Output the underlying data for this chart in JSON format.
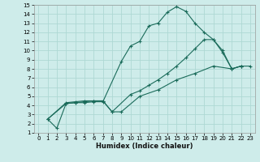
{
  "xlabel": "Humidex (Indice chaleur)",
  "bg_color": "#ceecea",
  "grid_color": "#aed8d4",
  "line_color": "#1a6b5a",
  "xlim": [
    -0.5,
    23.5
  ],
  "ylim": [
    1,
    15
  ],
  "xticks": [
    0,
    1,
    2,
    3,
    4,
    5,
    6,
    7,
    8,
    9,
    10,
    11,
    12,
    13,
    14,
    15,
    16,
    17,
    18,
    19,
    20,
    21,
    22,
    23
  ],
  "yticks": [
    1,
    2,
    3,
    4,
    5,
    6,
    7,
    8,
    9,
    10,
    11,
    12,
    13,
    14,
    15
  ],
  "series": [
    {
      "x": [
        1,
        2,
        3,
        4,
        5,
        6,
        7,
        9,
        10,
        11,
        12,
        13,
        14,
        15,
        16,
        17,
        18,
        19,
        20,
        21,
        22
      ],
      "y": [
        2.5,
        1.5,
        4.2,
        4.3,
        4.3,
        4.4,
        4.4,
        8.8,
        10.5,
        11.0,
        12.7,
        13.0,
        14.2,
        14.8,
        14.3,
        13.0,
        12.0,
        11.2,
        10.0,
        8.0,
        8.3
      ]
    },
    {
      "x": [
        1,
        3,
        4,
        5,
        6,
        7,
        8,
        10,
        11,
        12,
        13,
        14,
        15,
        16,
        17,
        18,
        19,
        20,
        21,
        22
      ],
      "y": [
        2.5,
        4.3,
        4.4,
        4.5,
        4.5,
        4.5,
        3.3,
        5.2,
        5.6,
        6.2,
        6.8,
        7.5,
        8.3,
        9.2,
        10.2,
        11.2,
        11.2,
        9.8,
        8.0,
        8.3
      ]
    },
    {
      "x": [
        1,
        3,
        4,
        5,
        6,
        7,
        8,
        9,
        11,
        13,
        15,
        17,
        19,
        21,
        22,
        23
      ],
      "y": [
        2.5,
        4.2,
        4.3,
        4.4,
        4.5,
        4.5,
        3.3,
        3.3,
        5.0,
        5.7,
        6.8,
        7.5,
        8.3,
        8.0,
        8.3,
        8.3
      ]
    }
  ]
}
